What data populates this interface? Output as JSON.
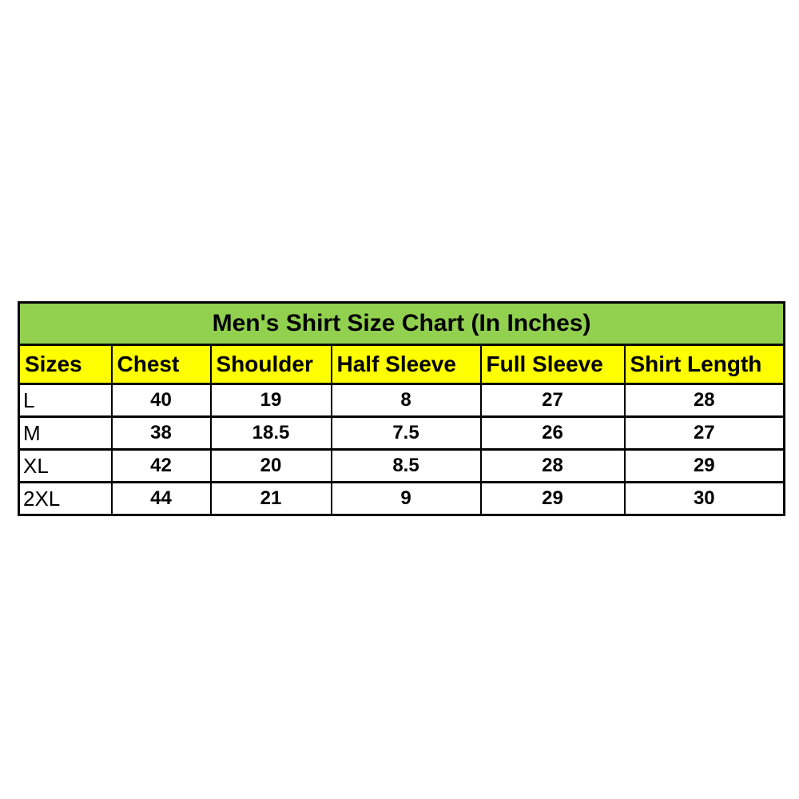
{
  "table": {
    "title": "Men's Shirt Size Chart (In Inches)",
    "columns": [
      "Sizes",
      "Chest",
      "Shoulder",
      "Half Sleeve",
      "Full Sleeve",
      "Shirt Length"
    ],
    "rows": [
      [
        "L",
        "40",
        "19",
        "8",
        "27",
        "28"
      ],
      [
        "M",
        "38",
        "18.5",
        "7.5",
        "26",
        "27"
      ],
      [
        "XL",
        "42",
        "20",
        "8.5",
        "28",
        "29"
      ],
      [
        "2XL",
        "44",
        "21",
        "9",
        "29",
        "30"
      ]
    ],
    "colors": {
      "title_bg": "#92D050",
      "header_bg": "#FFFF00",
      "row_bg": "#FFFFFF",
      "border": "#000000",
      "text": "#000000"
    }
  },
  "chart_data": {
    "type": "table",
    "title": "Men's Shirt Size Chart (In Inches)",
    "columns": [
      "Sizes",
      "Chest",
      "Shoulder",
      "Half Sleeve",
      "Full Sleeve",
      "Shirt Length"
    ],
    "rows": [
      [
        "L",
        40,
        19,
        8,
        27,
        28
      ],
      [
        "M",
        38,
        18.5,
        7.5,
        26,
        27
      ],
      [
        "XL",
        42,
        20,
        8.5,
        28,
        29
      ],
      [
        "2XL",
        44,
        21,
        9,
        29,
        30
      ]
    ],
    "units": "inches",
    "layout": {
      "title_row_bg": "#92D050",
      "header_row_bg": "#FFFF00",
      "grid": true
    }
  }
}
